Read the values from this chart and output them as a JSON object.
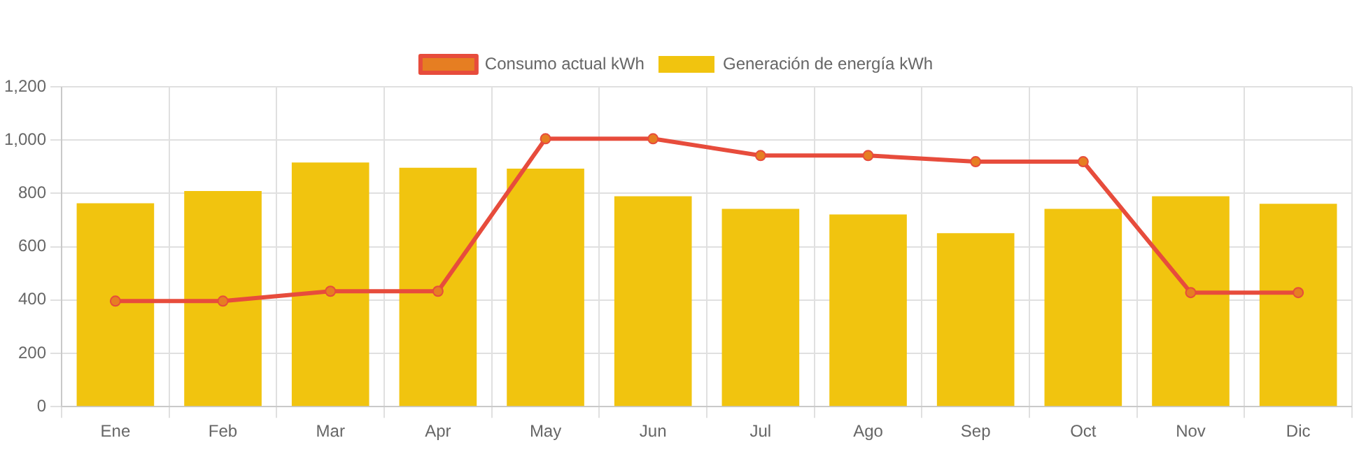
{
  "chart_data": {
    "type": "bar",
    "categories": [
      "Ene",
      "Feb",
      "Mar",
      "Apr",
      "May",
      "Jun",
      "Jul",
      "Ago",
      "Sep",
      "Oct",
      "Nov",
      "Dic"
    ],
    "series": [
      {
        "name": "Consumo actual kWh",
        "type": "line",
        "color": "#e74c3c",
        "values": [
          396,
          396,
          433,
          433,
          1005,
          1005,
          942,
          942,
          919,
          919,
          428,
          428
        ]
      },
      {
        "name": "Generación de energía kWh",
        "color": "#f1c40f",
        "values": [
          763,
          809,
          916,
          896,
          893,
          789,
          742,
          721,
          651,
          742,
          789,
          761
        ]
      }
    ],
    "ylim": [
      0,
      1200
    ],
    "yticks": [
      0,
      200,
      400,
      600,
      800,
      {
        "value": 1000,
        "label": "1,000"
      },
      {
        "value": 1200,
        "label": "1,200"
      }
    ],
    "grid": true,
    "legend": "top",
    "marker": "circle"
  }
}
